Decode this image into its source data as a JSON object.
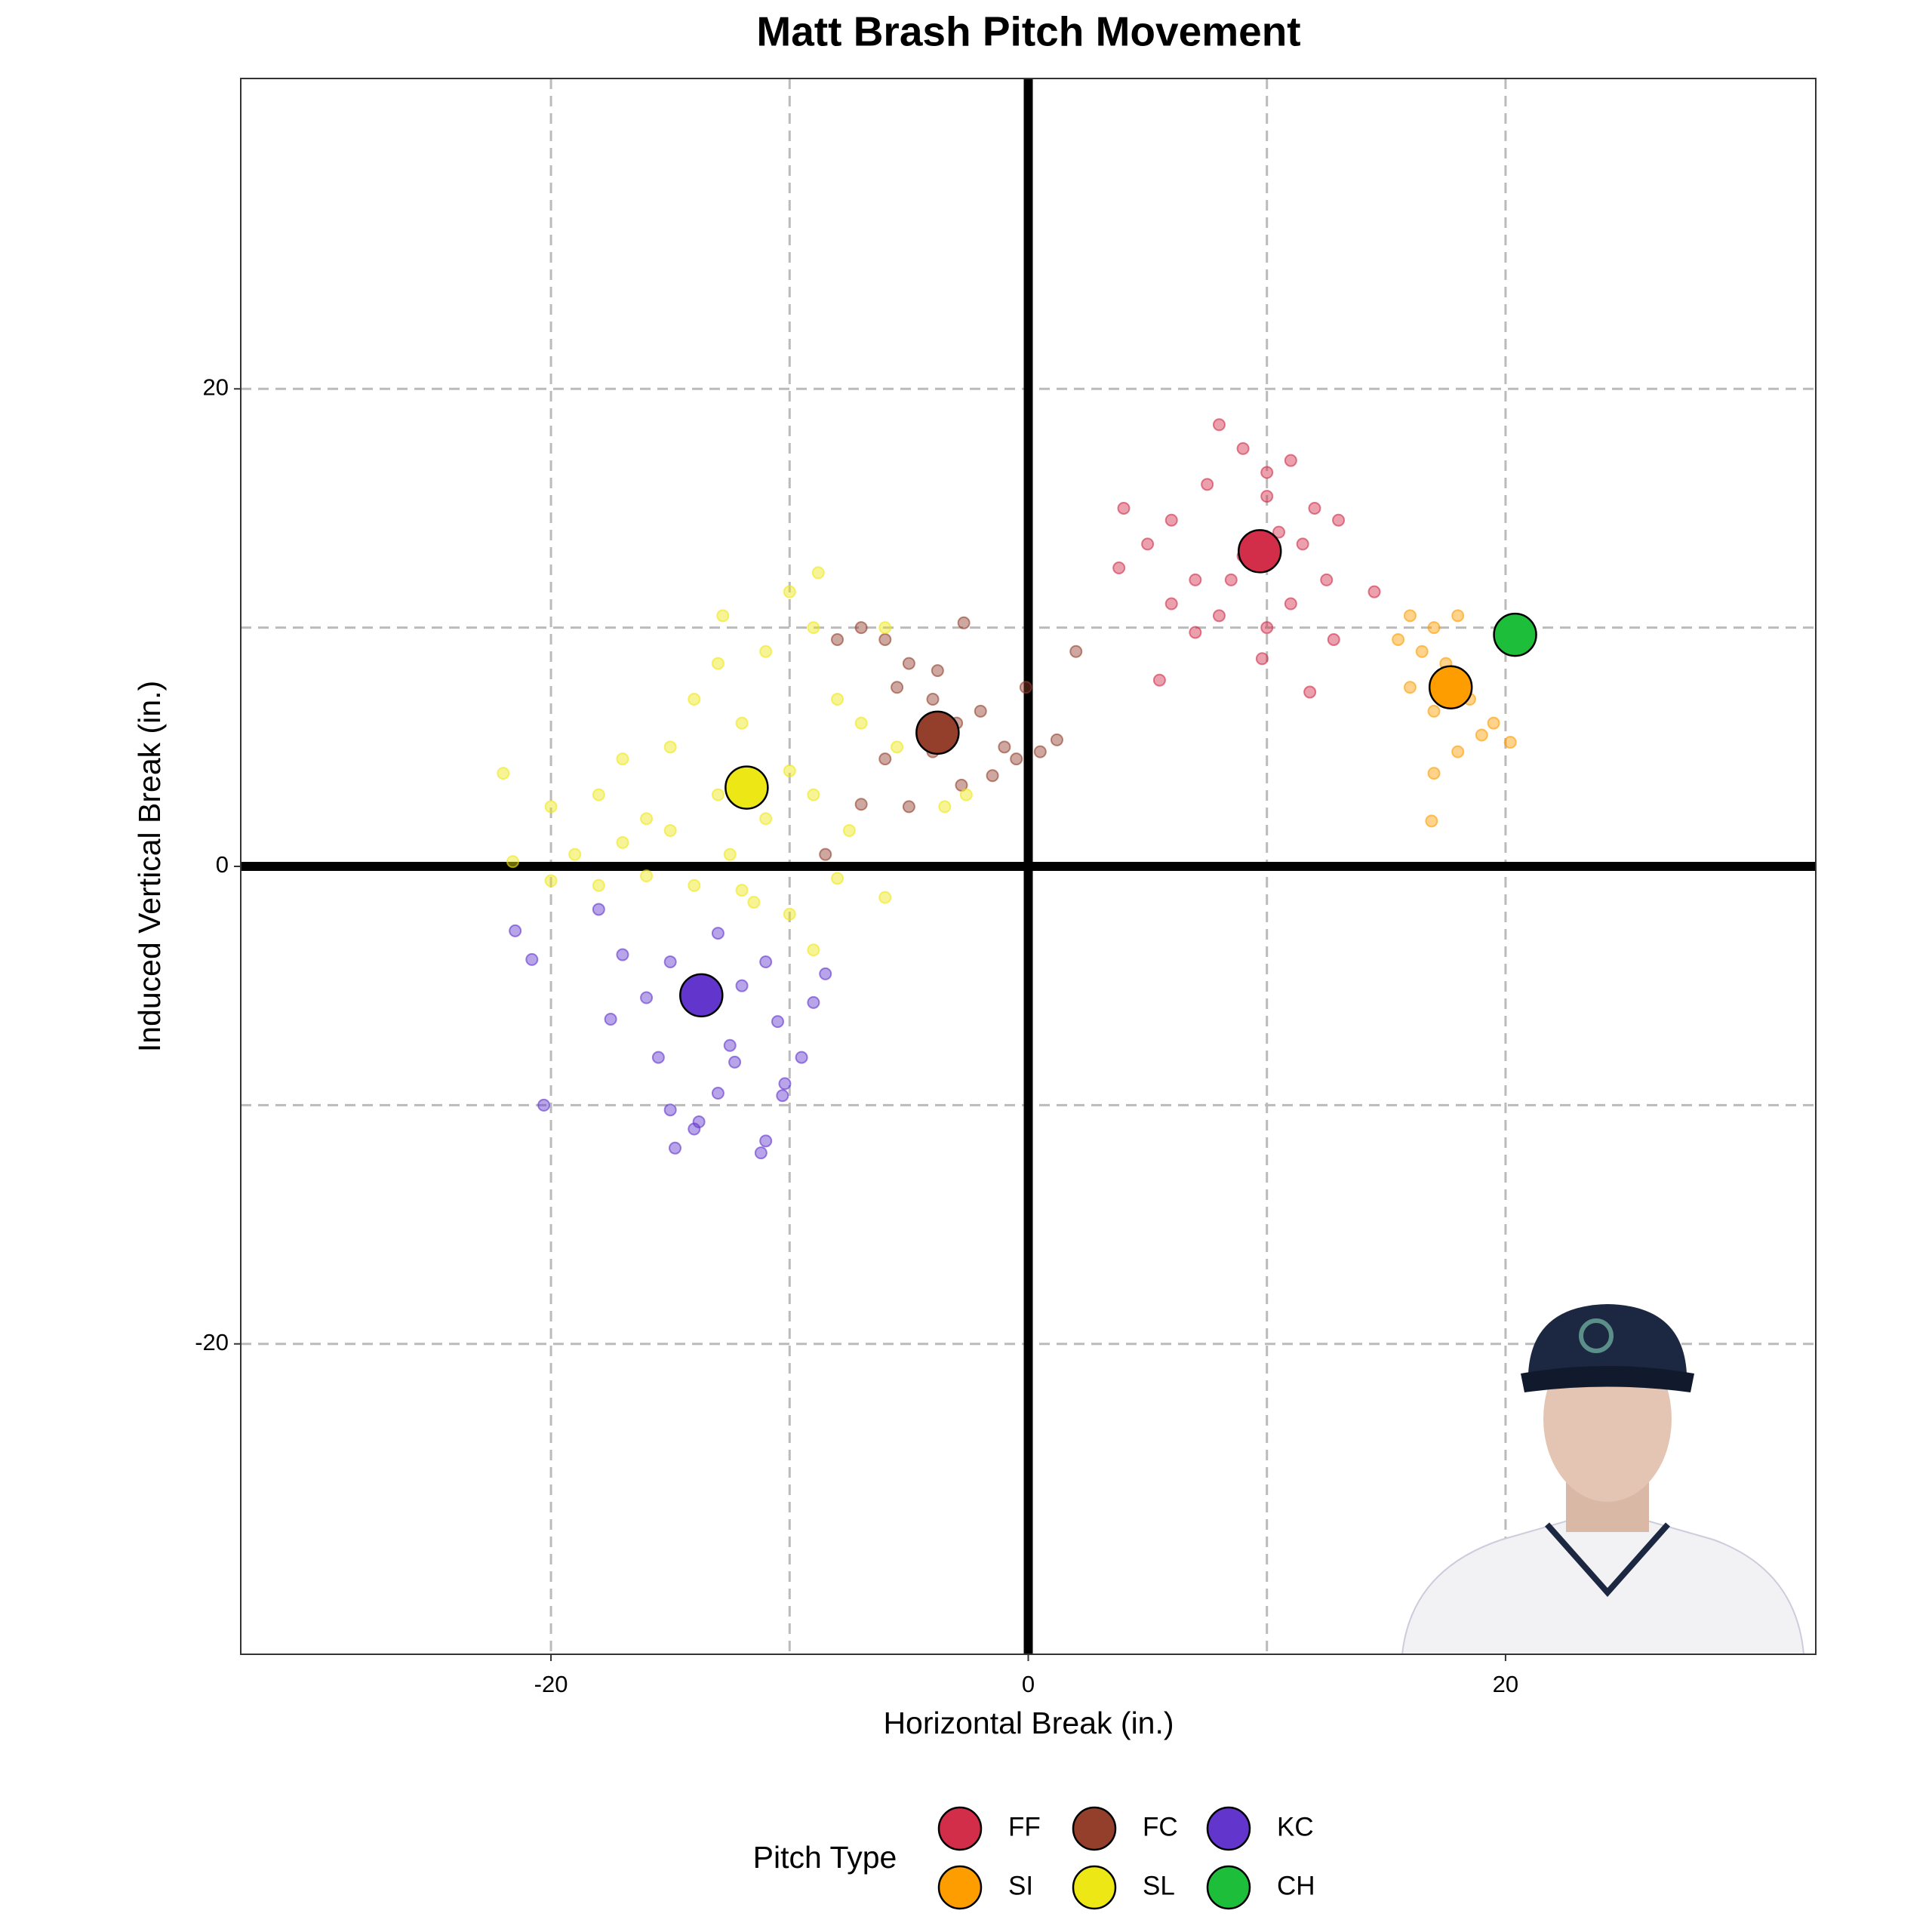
{
  "chart_data": {
    "type": "scatter",
    "title": "Matt Brash Pitch Movement",
    "x_label": "Horizontal Break (in.)",
    "y_label": "Induced Vertical Break (in.)",
    "legend_title": "Pitch Type",
    "legend_position": "bottom",
    "xlim": [
      -33,
      33
    ],
    "ylim": [
      -33,
      33
    ],
    "xticks": [
      -20,
      0,
      20
    ],
    "yticks": [
      -20,
      0,
      20
    ],
    "x_minor_grid": [
      -10,
      10
    ],
    "y_minor_grid": [
      -10,
      10
    ],
    "grid": true,
    "series": [
      {
        "name": "FF",
        "color": "#d22d49",
        "average_x": 9.7,
        "average_y": 13.2,
        "x": [
          5,
          6,
          7.5,
          8,
          9,
          10,
          11,
          12,
          13,
          12.5,
          11,
          10,
          8,
          7,
          6,
          4,
          3.8,
          5.5,
          9.8,
          11.8,
          14.5,
          9,
          10.5,
          8.5,
          11.5,
          7,
          12.8,
          10
        ],
        "y": [
          13.5,
          14.5,
          16,
          18.5,
          17.5,
          16.5,
          17,
          15,
          14.5,
          12,
          11,
          10,
          10.5,
          12,
          11,
          15,
          12.5,
          7.8,
          8.7,
          7.3,
          11.5,
          13,
          14,
          12,
          13.5,
          9.8,
          9.5,
          15.5
        ]
      },
      {
        "name": "SI",
        "color": "#fe9d00",
        "average_x": 17.7,
        "average_y": 7.5,
        "x": [
          16,
          17,
          18,
          15.5,
          16.5,
          16,
          17,
          18.5,
          19,
          18,
          17,
          16.9,
          19.5,
          20.2,
          17.5
        ],
        "y": [
          10.5,
          10,
          10.5,
          9.5,
          9,
          7.5,
          6.5,
          7,
          5.5,
          4.8,
          3.9,
          1.9,
          6,
          5.2,
          8.5
        ]
      },
      {
        "name": "FC",
        "color": "#933f2c",
        "average_x": -3.8,
        "average_y": 5.6,
        "x": [
          -8,
          -7,
          -6,
          -5,
          -3.8,
          -2.7,
          -5.5,
          -4,
          -3,
          -2,
          -1,
          -0.5,
          0.5,
          1.2,
          2,
          -1.5,
          -2.8,
          -5,
          -7,
          -6,
          -4,
          -8.5,
          -0.1
        ],
        "y": [
          9.5,
          10,
          9.5,
          8.5,
          8.2,
          10.2,
          7.5,
          7,
          6,
          6.5,
          5,
          4.5,
          4.8,
          5.3,
          9,
          3.8,
          3.4,
          2.5,
          2.6,
          4.5,
          4.8,
          0.5,
          7.5
        ]
      },
      {
        "name": "SL",
        "color": "#eee716",
        "average_x": -11.8,
        "average_y": 3.3,
        "x": [
          -22,
          -21.6,
          -20,
          -19,
          -18,
          -17,
          -16,
          -15,
          -14,
          -13,
          -12,
          -11,
          -10,
          -9,
          -8,
          -7,
          -6,
          -5.5,
          -6,
          -8,
          -10,
          -12,
          -14,
          -16,
          -18,
          -20,
          -13,
          -11,
          -10,
          -9,
          -7.5,
          -12.5,
          -15,
          -17,
          -9,
          -11.5,
          -8.8,
          -12.8,
          -3.5,
          -2.6
        ],
        "y": [
          3.9,
          0.2,
          2.5,
          0.5,
          3,
          4.5,
          2,
          5,
          7,
          8.5,
          6,
          9,
          11.5,
          10,
          7,
          6,
          10,
          5,
          -1.3,
          -0.5,
          -2,
          -1,
          -0.8,
          -0.4,
          -0.8,
          -0.6,
          3,
          2,
          4,
          3,
          1.5,
          0.5,
          1.5,
          1,
          -3.5,
          -1.5,
          12.3,
          10.5,
          2.5,
          3
        ]
      },
      {
        "name": "KC",
        "color": "#6236cd",
        "average_x": -13.7,
        "average_y": -5.4,
        "x": [
          -21.5,
          -20.8,
          -20.3,
          -18,
          -17,
          -16,
          -15.5,
          -15,
          -14,
          -14.8,
          -13.8,
          -13,
          -12.5,
          -12,
          -11,
          -10.5,
          -9.5,
          -10.3,
          -11,
          -11.2,
          -10.2,
          -9,
          -8.5,
          -13,
          -15,
          -17.5,
          -12.3
        ],
        "y": [
          -2.7,
          -3.9,
          -10,
          -1.8,
          -3.7,
          -5.5,
          -8,
          -10.2,
          -11,
          -11.8,
          -10.7,
          -9.5,
          -7.5,
          -5,
          -4,
          -6.5,
          -8,
          -9.6,
          -11.5,
          -12,
          -9.1,
          -5.7,
          -4.5,
          -2.8,
          -4,
          -6.4,
          -8.2
        ]
      },
      {
        "name": "CH",
        "color": "#1dbe3a",
        "average_x": 20.4,
        "average_y": 9.7,
        "x": [
          20.5
        ],
        "y": [
          9.8
        ]
      }
    ]
  }
}
